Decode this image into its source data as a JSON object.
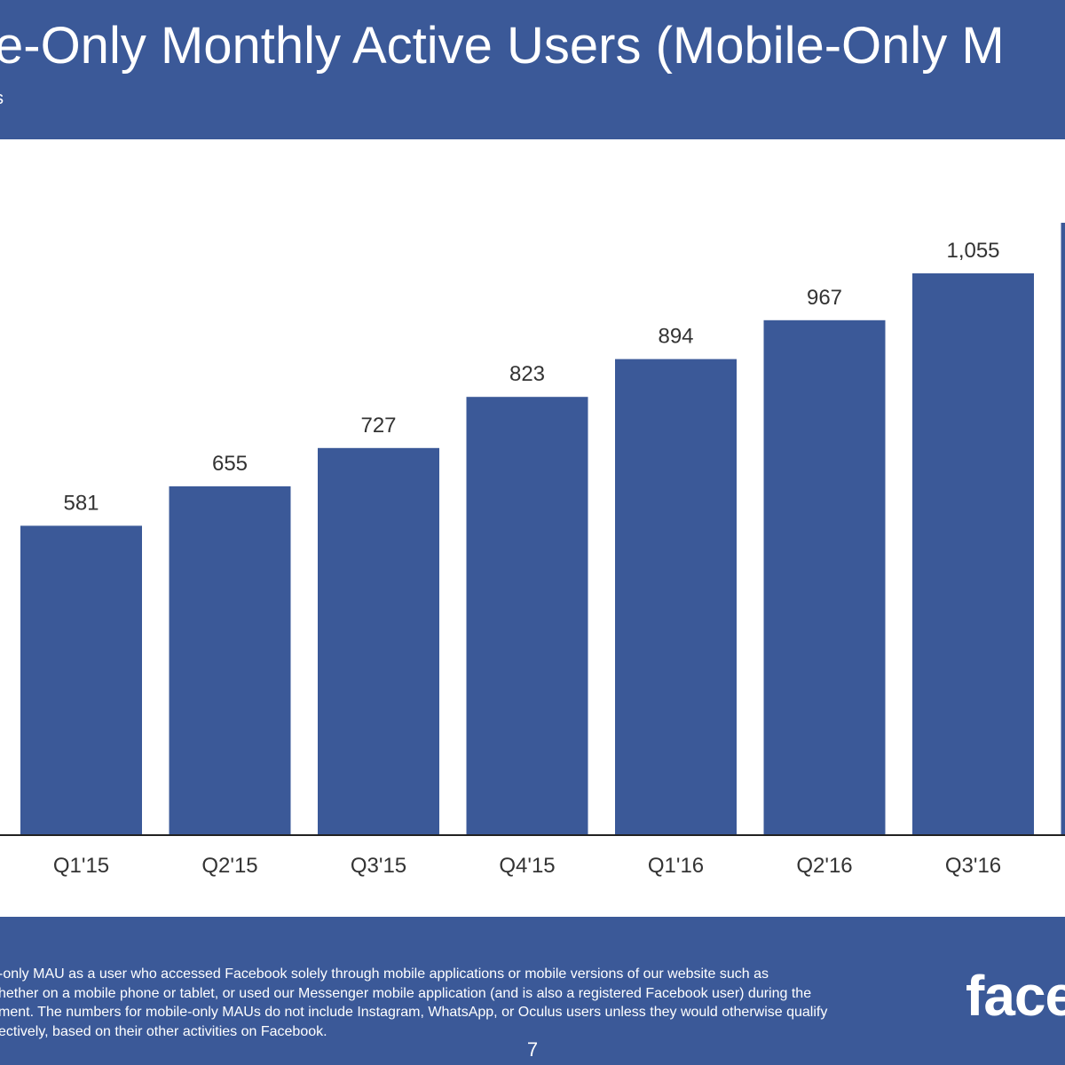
{
  "header": {
    "title": "e-Only Monthly Active Users (Mobile-Only M",
    "subtitle_fragment": "s"
  },
  "chart_data": {
    "type": "bar",
    "categories": [
      "Q1'15",
      "Q2'15",
      "Q3'15",
      "Q4'15",
      "Q1'16",
      "Q2'16",
      "Q3'16",
      ""
    ],
    "values": [
      581,
      655,
      727,
      823,
      894,
      967,
      1055,
      1150
    ],
    "value_labels": [
      "581",
      "655",
      "727",
      "823",
      "894",
      "967",
      "1,055",
      ""
    ],
    "title": "",
    "xlabel": "",
    "ylabel": "",
    "ylim": [
      0,
      1160
    ],
    "grid": false,
    "bar_color": "#3b5998"
  },
  "footer": {
    "footnote_lines": [
      "-only MAU as a user who accessed Facebook solely through mobile applications or mobile versions of our website such as",
      "hether on a mobile phone or tablet, or used our Messenger mobile application (and is also a registered Facebook user) during the",
      "ment. The numbers for mobile-only MAUs do not include Instagram, WhatsApp, or Oculus users unless they would otherwise qualify",
      "ectively, based on their other activities on Facebook."
    ],
    "page_number": "7",
    "brand": "face"
  },
  "colors": {
    "brand_blue": "#3b5998",
    "text_dark": "#333333",
    "white": "#ffffff"
  }
}
